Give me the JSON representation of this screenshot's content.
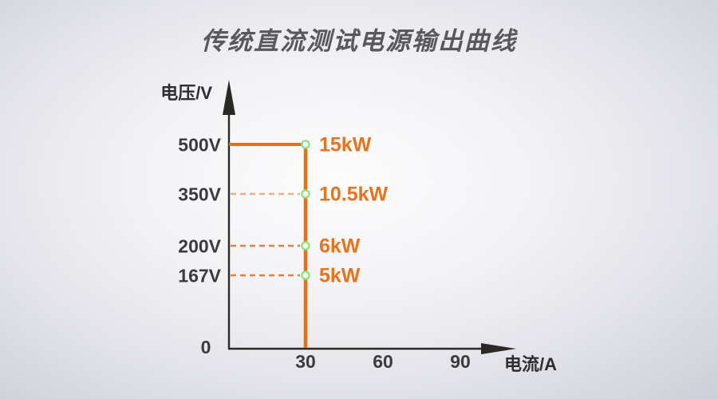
{
  "page": {
    "title": "传统直流测试电源输出曲线"
  },
  "chart_data": {
    "type": "line",
    "title": "传统直流测试电源输出曲线",
    "xlabel": "电流/A",
    "ylabel": "电压/V",
    "origin_label": "0",
    "x_ticks": [
      "30",
      "60",
      "90"
    ],
    "x_tick_values_a": [
      30,
      60,
      90
    ],
    "y_ticks": [
      "500V",
      "350V",
      "200V",
      "167V"
    ],
    "grid": false,
    "legend": null,
    "curve_vertices": [
      {
        "current_a": 0,
        "voltage_v": 500
      },
      {
        "current_a": 30,
        "voltage_v": 500
      },
      {
        "current_a": 30,
        "voltage_v": 0
      }
    ],
    "points": [
      {
        "voltage_label": "500V",
        "voltage_v": 500,
        "current_a": 30,
        "power_label": "15kW",
        "power_kw": 15,
        "guide_line": "solid"
      },
      {
        "voltage_label": "350V",
        "voltage_v": 350,
        "current_a": 30,
        "power_label": "10.5kW",
        "power_kw": 10.5,
        "guide_line": "dashed-light"
      },
      {
        "voltage_label": "200V",
        "voltage_v": 200,
        "current_a": 30,
        "power_label": "6kW",
        "power_kw": 6,
        "guide_line": "dashed"
      },
      {
        "voltage_label": "167V",
        "voltage_v": 167,
        "current_a": 30,
        "power_label": "5kW",
        "power_kw": 5,
        "guide_line": "dashed"
      }
    ],
    "colors": {
      "curve": "#EB6F0E",
      "dashed": "#EA7F2B",
      "dashed_light": "#F4AE7C",
      "power_label": "#E8731C",
      "marker_ring": "#8FE27D",
      "marker_fill": "#FDFFFA",
      "axis": "#2B2826",
      "tick_text": "#3B3A3C",
      "title_text": "#59585B"
    }
  }
}
